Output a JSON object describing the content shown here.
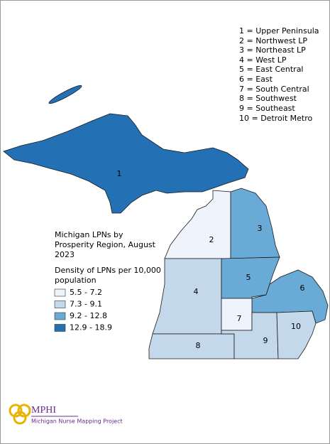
{
  "key": [
    "1 = Upper Peninsula",
    "2 = Northwest LP",
    "3 = Northeast LP",
    "4 = West LP",
    "5 = East Central",
    "6 = East",
    "7 = South Central",
    "8 = Southwest",
    "9 = Southeast",
    "10 = Detroit Metro"
  ],
  "legend": {
    "title": "Michigan LPNs by Prosperity Region, August 2023",
    "subtitle": "Density of LPNs per 10,000 population",
    "classes": [
      {
        "label": "5.5 - 7.2",
        "color": "#eef3fc"
      },
      {
        "label": "7.3 - 9.1",
        "color": "#c3d8ea"
      },
      {
        "label": "9.2 - 12.8",
        "color": "#6aaad6"
      },
      {
        "label": "12.9 - 18.9",
        "color": "#2370b4"
      }
    ]
  },
  "regions": [
    {
      "label": "1",
      "color": "#2370b4"
    },
    {
      "label": "2",
      "color": "#eef3fc"
    },
    {
      "label": "3",
      "color": "#6aaad6"
    },
    {
      "label": "4",
      "color": "#c3d8ea"
    },
    {
      "label": "5",
      "color": "#6aaad6"
    },
    {
      "label": "6",
      "color": "#6aaad6"
    },
    {
      "label": "7",
      "color": "#eef3fc"
    },
    {
      "label": "8",
      "color": "#c3d8ea"
    },
    {
      "label": "9",
      "color": "#c3d8ea"
    },
    {
      "label": "10",
      "color": "#c3d8ea"
    }
  ],
  "logo": {
    "name": "MPHI",
    "project": "Michigan Nurse Mapping Project"
  }
}
